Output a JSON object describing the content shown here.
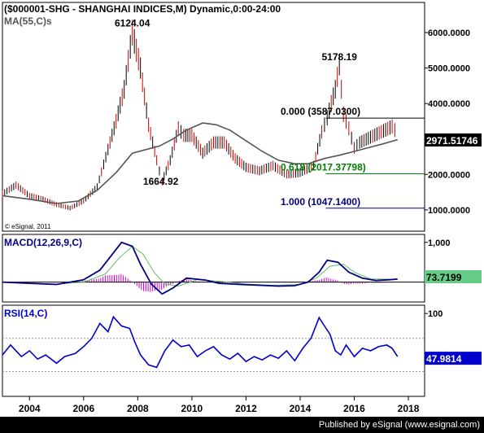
{
  "chart_data": {
    "type": "line",
    "title": "($000001-SHG - SHANGHAI INDICES,M) Dynamic,0:00-24:00",
    "copyright": "© eSignal, 2011",
    "x_ticks": [
      "2004",
      "2006",
      "2008",
      "2010",
      "2012",
      "2014",
      "2016",
      "2018"
    ],
    "x_range": [
      2003.0,
      2018.6
    ],
    "price_panel": {
      "ma_label": "MA(55,C)s",
      "ylim": [
        400,
        6850
      ],
      "yticks": [
        "1000.0000",
        "2000.0000",
        "3000.0000",
        "4000.0000",
        "5000.0000",
        "6000.0000"
      ],
      "ytick_values": [
        1000,
        2000,
        3000,
        4000,
        5000,
        6000
      ],
      "last_price_label": "2971.51746",
      "last_price": 2971.5,
      "annotations": [
        {
          "text": "6124.04",
          "x": 2007.8,
          "y": 6124
        },
        {
          "text": "1664.92",
          "x": 2008.85,
          "y": 1665
        },
        {
          "text": "5178.19",
          "x": 2015.45,
          "y": 5178
        }
      ],
      "fib_levels": [
        {
          "label": "0.000 (3587.0300)",
          "value": 3587.03,
          "color": "#000000"
        },
        {
          "label": "0.618 (2017.37798)",
          "value": 2017.38,
          "color": "#008000"
        },
        {
          "label": "1.000 (1047.1400)",
          "value": 1047.14,
          "color": "#000080"
        }
      ],
      "fib_start_x": 2014.95,
      "series": [
        {
          "name": "price",
          "color": "#000000",
          "x": [
            2003.0,
            2003.5,
            2004.0,
            2004.5,
            2005.0,
            2005.5,
            2006.0,
            2006.5,
            2006.9,
            2007.2,
            2007.5,
            2007.8,
            2008.1,
            2008.4,
            2008.7,
            2008.9,
            2009.2,
            2009.5,
            2009.7,
            2010.0,
            2010.4,
            2010.8,
            2011.2,
            2011.6,
            2012.0,
            2012.5,
            2013.0,
            2013.5,
            2014.0,
            2014.5,
            2014.8,
            2015.0,
            2015.3,
            2015.45,
            2015.6,
            2015.8,
            2016.0,
            2016.2,
            2016.6,
            2017.0,
            2017.4,
            2017.6
          ],
          "y": [
            1450,
            1700,
            1400,
            1300,
            1150,
            1050,
            1250,
            1650,
            2700,
            3500,
            4400,
            6000,
            5000,
            3400,
            2400,
            1800,
            2400,
            3300,
            3100,
            3100,
            2600,
            2900,
            2900,
            2450,
            2200,
            2100,
            2250,
            2000,
            2050,
            2250,
            3200,
            3600,
            4400,
            5100,
            3700,
            3300,
            2750,
            2900,
            3050,
            3200,
            3350,
            3150
          ]
        },
        {
          "name": "MA(55,C)s",
          "color": "#555555",
          "x": [
            2003.0,
            2004.0,
            2005.0,
            2005.8,
            2006.5,
            2007.2,
            2007.8,
            2008.3,
            2008.8,
            2009.3,
            2009.8,
            2010.4,
            2010.9,
            2011.4,
            2012.0,
            2012.6,
            2013.2,
            2013.8,
            2014.3,
            2014.9,
            2015.5,
            2016.0,
            2016.5,
            2017.0,
            2017.6
          ],
          "y": [
            1400,
            1300,
            1180,
            1250,
            1550,
            2050,
            2600,
            2700,
            2800,
            3000,
            3250,
            3450,
            3400,
            3250,
            2950,
            2650,
            2400,
            2300,
            2300,
            2450,
            2550,
            2650,
            2750,
            2850,
            2980
          ]
        }
      ]
    },
    "macd_panel": {
      "label": "MACD(12,26,9,C)",
      "ylim": [
        -500,
        1200
      ],
      "yticks": [
        "1,000"
      ],
      "ytick_values": [
        1000
      ],
      "zero_line": 0,
      "last_value_label": "73.7199",
      "last_value": 73.7,
      "series": [
        {
          "name": "macd",
          "color": "#000080",
          "x": [
            2003.0,
            2004.0,
            2005.0,
            2006.0,
            2006.6,
            2007.0,
            2007.4,
            2007.8,
            2008.1,
            2008.5,
            2008.9,
            2009.3,
            2009.8,
            2010.5,
            2011.0,
            2011.8,
            2012.5,
            2013.2,
            2013.8,
            2014.3,
            2014.7,
            2015.0,
            2015.4,
            2015.8,
            2016.3,
            2016.8,
            2017.3,
            2017.6
          ],
          "y": [
            0,
            -30,
            -60,
            60,
            300,
            650,
            1000,
            900,
            450,
            -50,
            -300,
            -150,
            100,
            50,
            -30,
            -60,
            -80,
            -100,
            -90,
            0,
            250,
            550,
            500,
            250,
            100,
            40,
            60,
            75
          ]
        },
        {
          "name": "signal",
          "color": "#66bb66",
          "x": [
            2003.0,
            2005.0,
            2006.0,
            2006.8,
            2007.3,
            2007.8,
            2008.2,
            2008.6,
            2009.0,
            2009.5,
            2010.2,
            2011.0,
            2012.0,
            2013.0,
            2014.0,
            2014.6,
            2015.1,
            2015.6,
            2016.0,
            2016.6,
            2017.6
          ],
          "y": [
            0,
            -50,
            0,
            200,
            600,
            900,
            700,
            250,
            -50,
            -100,
            60,
            20,
            -50,
            -80,
            -60,
            100,
            400,
            450,
            250,
            80,
            70
          ]
        }
      ]
    },
    "rsi_panel": {
      "label": "RSI(14,C)",
      "ylim": [
        0,
        110
      ],
      "yticks": [
        "100"
      ],
      "ytick_values": [
        100
      ],
      "reference_lines": [
        70,
        30
      ],
      "last_value_label": "47.9814",
      "last_value": 48.0,
      "series": [
        {
          "name": "rsi",
          "color": "#0000cc",
          "x": [
            2003.0,
            2003.3,
            2003.7,
            2004.0,
            2004.3,
            2004.6,
            2005.0,
            2005.3,
            2005.7,
            2006.0,
            2006.3,
            2006.6,
            2006.9,
            2007.1,
            2007.4,
            2007.7,
            2007.9,
            2008.1,
            2008.4,
            2008.7,
            2009.0,
            2009.3,
            2009.6,
            2009.9,
            2010.2,
            2010.5,
            2010.8,
            2011.1,
            2011.4,
            2011.7,
            2012.0,
            2012.3,
            2012.6,
            2012.9,
            2013.2,
            2013.5,
            2013.8,
            2014.1,
            2014.4,
            2014.7,
            2014.9,
            2015.1,
            2015.3,
            2015.5,
            2015.7,
            2016.0,
            2016.3,
            2016.6,
            2016.9,
            2017.2,
            2017.4,
            2017.6
          ],
          "y": [
            50,
            62,
            48,
            55,
            45,
            50,
            40,
            48,
            52,
            60,
            70,
            88,
            78,
            96,
            85,
            82,
            65,
            50,
            38,
            35,
            55,
            68,
            60,
            62,
            48,
            55,
            60,
            50,
            45,
            52,
            42,
            48,
            44,
            50,
            46,
            55,
            43,
            58,
            70,
            95,
            85,
            75,
            55,
            50,
            62,
            48,
            58,
            55,
            60,
            62,
            58,
            48
          ]
        }
      ]
    }
  },
  "credit": "Published by eSignal (www.esignal.com)"
}
